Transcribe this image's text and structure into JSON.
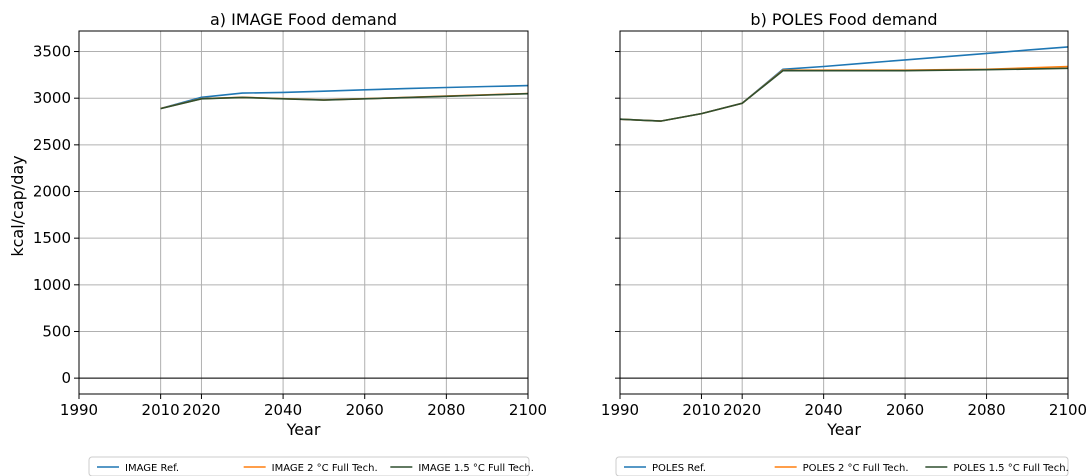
{
  "ylabel": "kcal/cap/day",
  "ylim": [
    -170,
    3720
  ],
  "yticks": [
    0,
    500,
    1000,
    1500,
    2000,
    2500,
    3000,
    3500
  ],
  "xlim": [
    1990,
    2100
  ],
  "xticks": [
    1990,
    2010,
    2020,
    2040,
    2060,
    2080,
    2100
  ],
  "chart_data": [
    {
      "type": "line",
      "title": "a) IMAGE Food demand",
      "xlabel": "Year",
      "ylabel": "kcal/cap/day",
      "grid": true,
      "legend_placement": "below",
      "series": [
        {
          "name": "IMAGE Ref.",
          "color": "#1f77b4",
          "x": [
            2010,
            2020,
            2030,
            2040,
            2050,
            2060,
            2070,
            2080,
            2090,
            2100
          ],
          "y": [
            2890,
            3010,
            3055,
            3062,
            3075,
            3090,
            3103,
            3115,
            3125,
            3135
          ]
        },
        {
          "name": "IMAGE 2 °C Full Tech.",
          "color": "#ff7f0e",
          "x": [
            2010,
            2020,
            2030,
            2040,
            2050,
            2060,
            2070,
            2080,
            2090,
            2100
          ],
          "y": [
            2890,
            2995,
            3010,
            2995,
            2982,
            2995,
            3008,
            3022,
            3036,
            3050
          ]
        },
        {
          "name": "IMAGE 1.5 °C Full Tech.",
          "color": "#2f4f2f",
          "x": [
            2010,
            2020,
            2030,
            2040,
            2050,
            2060,
            2070,
            2080,
            2090,
            2100
          ],
          "y": [
            2888,
            2993,
            3008,
            2993,
            2980,
            2993,
            3006,
            3020,
            3034,
            3048
          ]
        }
      ]
    },
    {
      "type": "line",
      "title": "b) POLES Food demand",
      "xlabel": "Year",
      "ylabel": "",
      "grid": true,
      "legend_placement": "below",
      "series": [
        {
          "name": "POLES Ref.",
          "color": "#1f77b4",
          "x": [
            1990,
            2000,
            2010,
            2020,
            2030,
            2040,
            2050,
            2060,
            2070,
            2080,
            2090,
            2100
          ],
          "y": [
            2775,
            2755,
            2835,
            2945,
            3310,
            3340,
            3375,
            3410,
            3445,
            3480,
            3515,
            3550
          ]
        },
        {
          "name": "POLES 2 °C Full Tech.",
          "color": "#ff7f0e",
          "x": [
            1990,
            2000,
            2010,
            2020,
            2030,
            2040,
            2050,
            2060,
            2070,
            2080,
            2090,
            2100
          ],
          "y": [
            2775,
            2755,
            2835,
            2945,
            3300,
            3300,
            3300,
            3300,
            3305,
            3310,
            3325,
            3340
          ]
        },
        {
          "name": "POLES 1.5 °C Full Tech.",
          "color": "#2f4f2f",
          "x": [
            1990,
            2000,
            2010,
            2020,
            2030,
            2040,
            2050,
            2060,
            2070,
            2080,
            2090,
            2100
          ],
          "y": [
            2775,
            2755,
            2835,
            2945,
            3295,
            3295,
            3295,
            3295,
            3300,
            3305,
            3312,
            3320
          ]
        }
      ]
    }
  ]
}
